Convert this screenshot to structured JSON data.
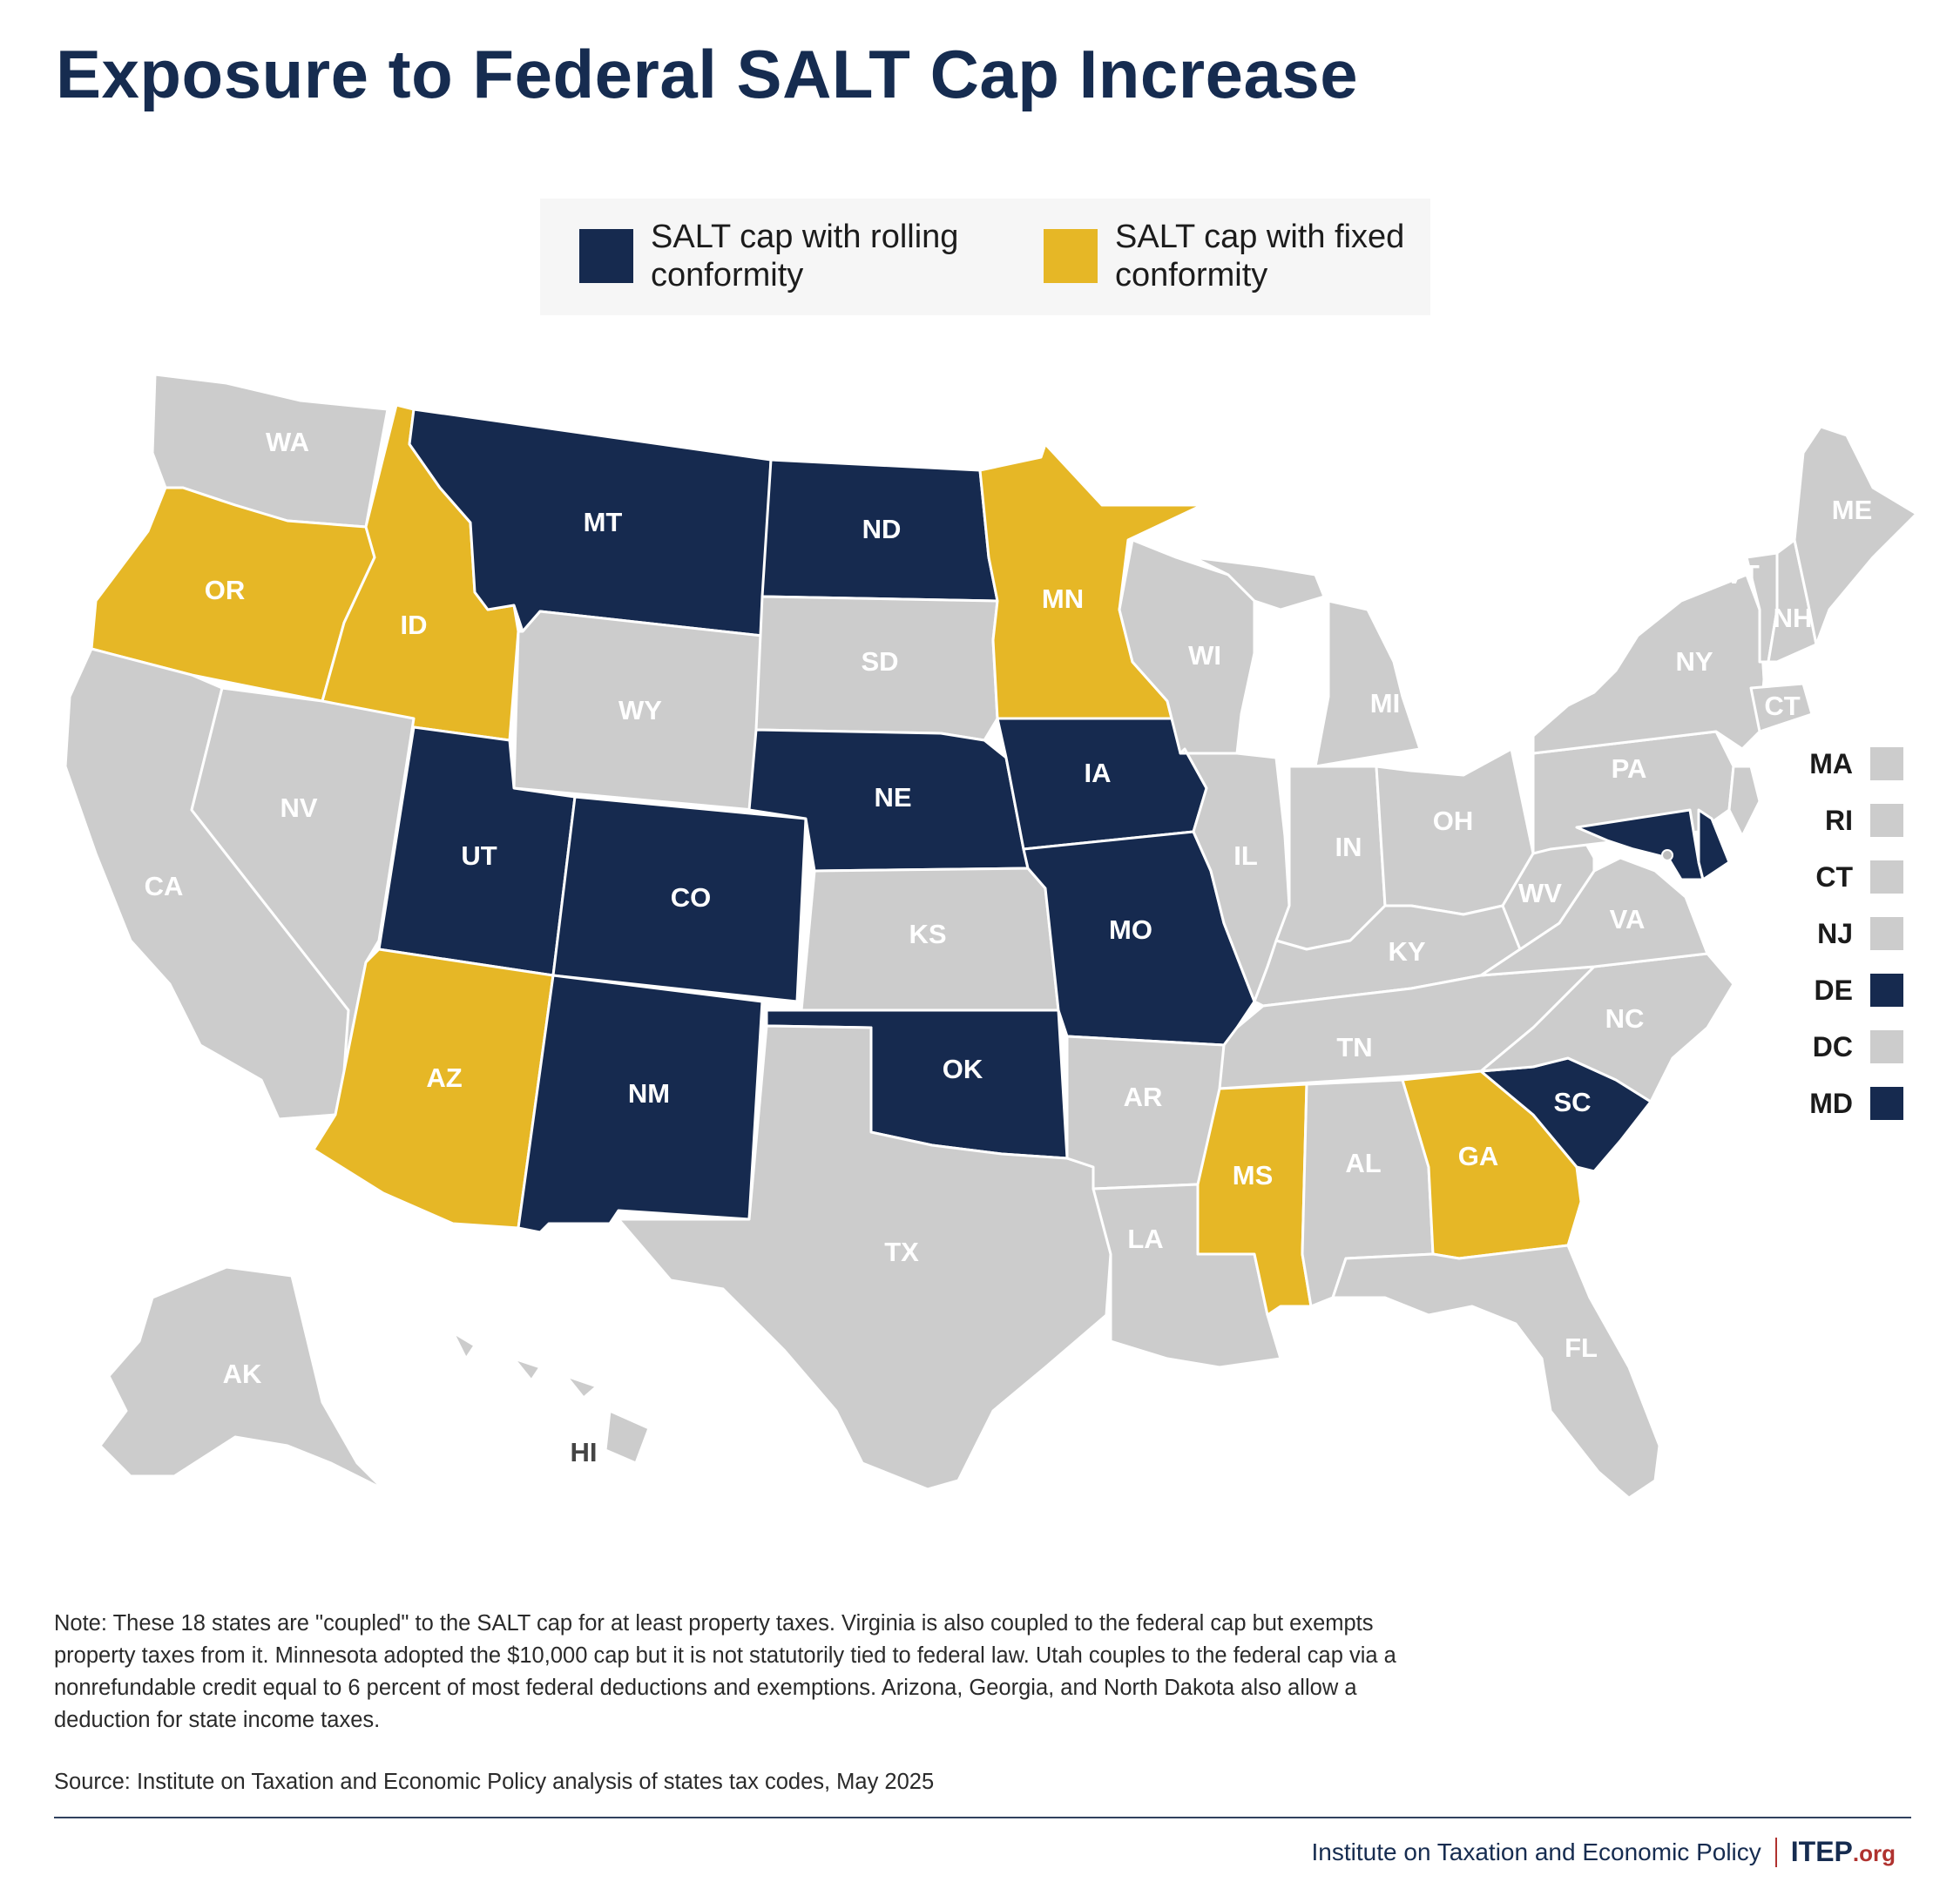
{
  "title": "Exposure to Federal SALT Cap Increase",
  "legend": {
    "rolling": {
      "label": "SALT cap with rolling conformity",
      "color": "#162a4f"
    },
    "fixed": {
      "label": "SALT cap with fixed conformity",
      "color": "#e6b726"
    },
    "none_color": "#cccccc"
  },
  "states": [
    {
      "code": "WA",
      "category": "none"
    },
    {
      "code": "OR",
      "category": "fixed"
    },
    {
      "code": "CA",
      "category": "none"
    },
    {
      "code": "ID",
      "category": "fixed"
    },
    {
      "code": "NV",
      "category": "none"
    },
    {
      "code": "MT",
      "category": "rolling"
    },
    {
      "code": "WY",
      "category": "none"
    },
    {
      "code": "UT",
      "category": "rolling"
    },
    {
      "code": "AZ",
      "category": "fixed"
    },
    {
      "code": "CO",
      "category": "rolling"
    },
    {
      "code": "NM",
      "category": "rolling"
    },
    {
      "code": "ND",
      "category": "rolling"
    },
    {
      "code": "SD",
      "category": "none"
    },
    {
      "code": "NE",
      "category": "rolling"
    },
    {
      "code": "KS",
      "category": "none"
    },
    {
      "code": "OK",
      "category": "rolling"
    },
    {
      "code": "TX",
      "category": "none"
    },
    {
      "code": "MN",
      "category": "fixed"
    },
    {
      "code": "IA",
      "category": "rolling"
    },
    {
      "code": "MO",
      "category": "rolling"
    },
    {
      "code": "AR",
      "category": "none"
    },
    {
      "code": "LA",
      "category": "none"
    },
    {
      "code": "WI",
      "category": "none"
    },
    {
      "code": "IL",
      "category": "none"
    },
    {
      "code": "MI",
      "category": "none"
    },
    {
      "code": "IN",
      "category": "none"
    },
    {
      "code": "OH",
      "category": "none"
    },
    {
      "code": "KY",
      "category": "none"
    },
    {
      "code": "TN",
      "category": "none"
    },
    {
      "code": "MS",
      "category": "fixed"
    },
    {
      "code": "AL",
      "category": "none"
    },
    {
      "code": "GA",
      "category": "fixed"
    },
    {
      "code": "FL",
      "category": "none"
    },
    {
      "code": "SC",
      "category": "rolling"
    },
    {
      "code": "NC",
      "category": "none"
    },
    {
      "code": "VA",
      "category": "none"
    },
    {
      "code": "WV",
      "category": "none"
    },
    {
      "code": "PA",
      "category": "none"
    },
    {
      "code": "NY",
      "category": "none"
    },
    {
      "code": "VT",
      "category": "none"
    },
    {
      "code": "NH",
      "category": "none"
    },
    {
      "code": "ME",
      "category": "none"
    },
    {
      "code": "CT",
      "category": "none"
    },
    {
      "code": "MD",
      "category": "rolling"
    },
    {
      "code": "DE",
      "category": "rolling"
    },
    {
      "code": "NJ",
      "category": "none"
    },
    {
      "code": "AK",
      "category": "none"
    },
    {
      "code": "HI",
      "category": "none"
    }
  ],
  "small_states": [
    {
      "code": "MA",
      "category": "none"
    },
    {
      "code": "RI",
      "category": "none"
    },
    {
      "code": "CT",
      "category": "none"
    },
    {
      "code": "NJ",
      "category": "none"
    },
    {
      "code": "DE",
      "category": "rolling"
    },
    {
      "code": "DC",
      "category": "none"
    },
    {
      "code": "MD",
      "category": "rolling"
    }
  ],
  "note": "Note: These 18 states are \"coupled\" to the SALT cap for at least property taxes. Virginia is also coupled to the federal cap but exempts property taxes from it. Minnesota adopted the $10,000 cap but it is not statutorily tied to federal law. Utah couples to the federal cap via a nonrefundable credit equal to 6 percent of most federal deductions and exemptions. Arizona, Georgia, and North Dakota also allow a deduction for state income taxes.",
  "source": "Source: Institute on Taxation and Economic Policy analysis of states tax codes, May 2025",
  "footer": {
    "organization": "Institute on Taxation and Economic Policy",
    "brand": "ITEP",
    "brand_suffix": ".org"
  }
}
